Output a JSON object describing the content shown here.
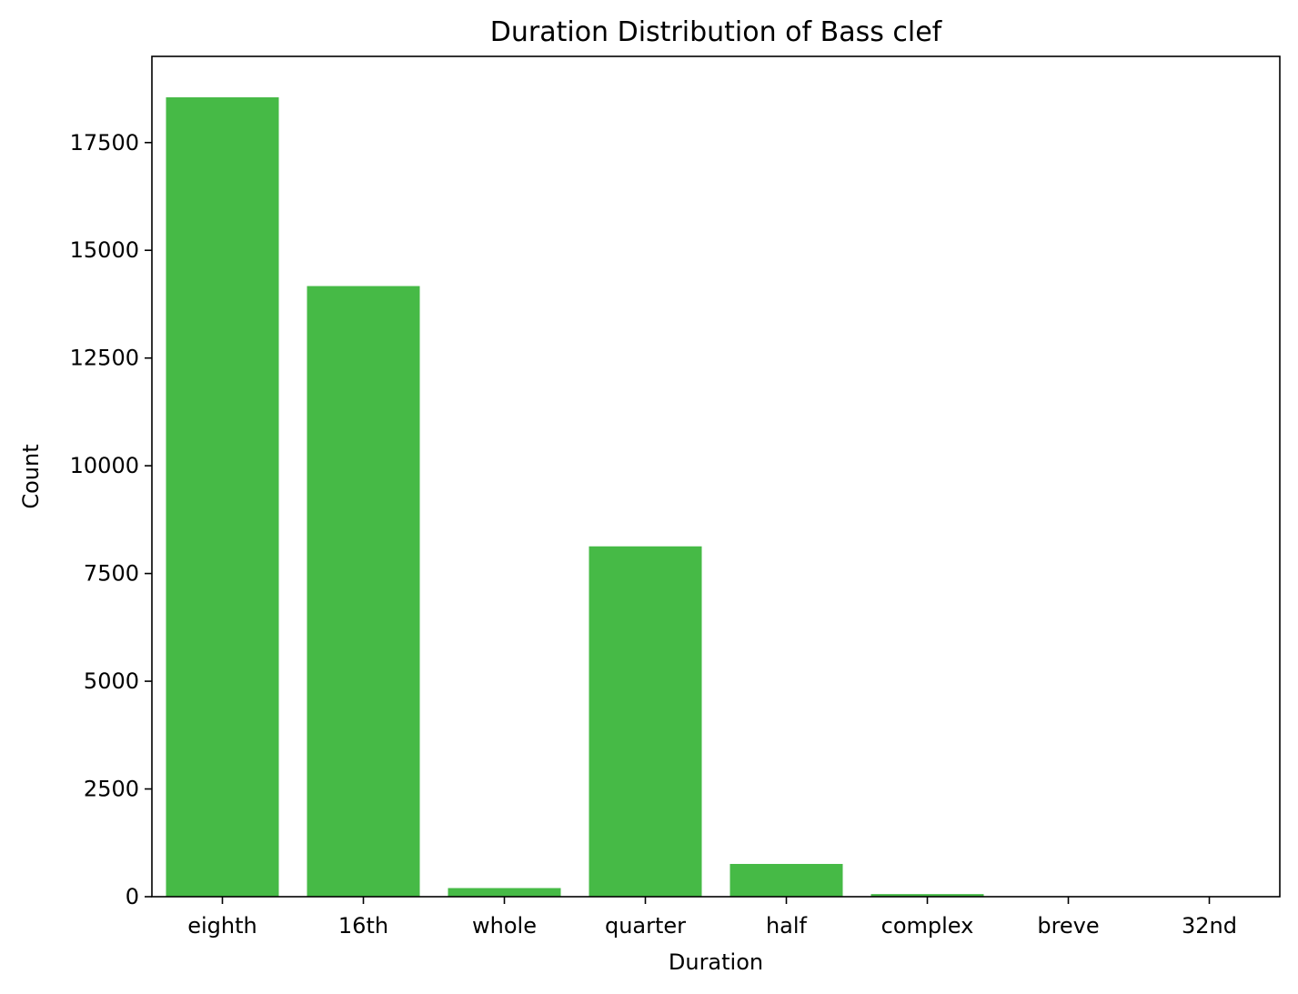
{
  "chart_data": {
    "type": "bar",
    "title": "Duration Distribution of Bass clef",
    "xlabel": "Duration",
    "ylabel": "Count",
    "categories": [
      "eighth",
      "16th",
      "whole",
      "quarter",
      "half",
      "complex",
      "breve",
      "32nd"
    ],
    "values": [
      18550,
      14170,
      200,
      8130,
      760,
      60,
      5,
      2
    ],
    "ylim": [
      0,
      19500
    ],
    "yticks": [
      0,
      2500,
      5000,
      7500,
      10000,
      12500,
      15000,
      17500
    ],
    "ytick_labels": [
      "0",
      "2500",
      "5000",
      "7500",
      "10000",
      "12500",
      "15000",
      "17500"
    ],
    "grid": false,
    "legend": "none",
    "bar_color": "#46BA46"
  }
}
